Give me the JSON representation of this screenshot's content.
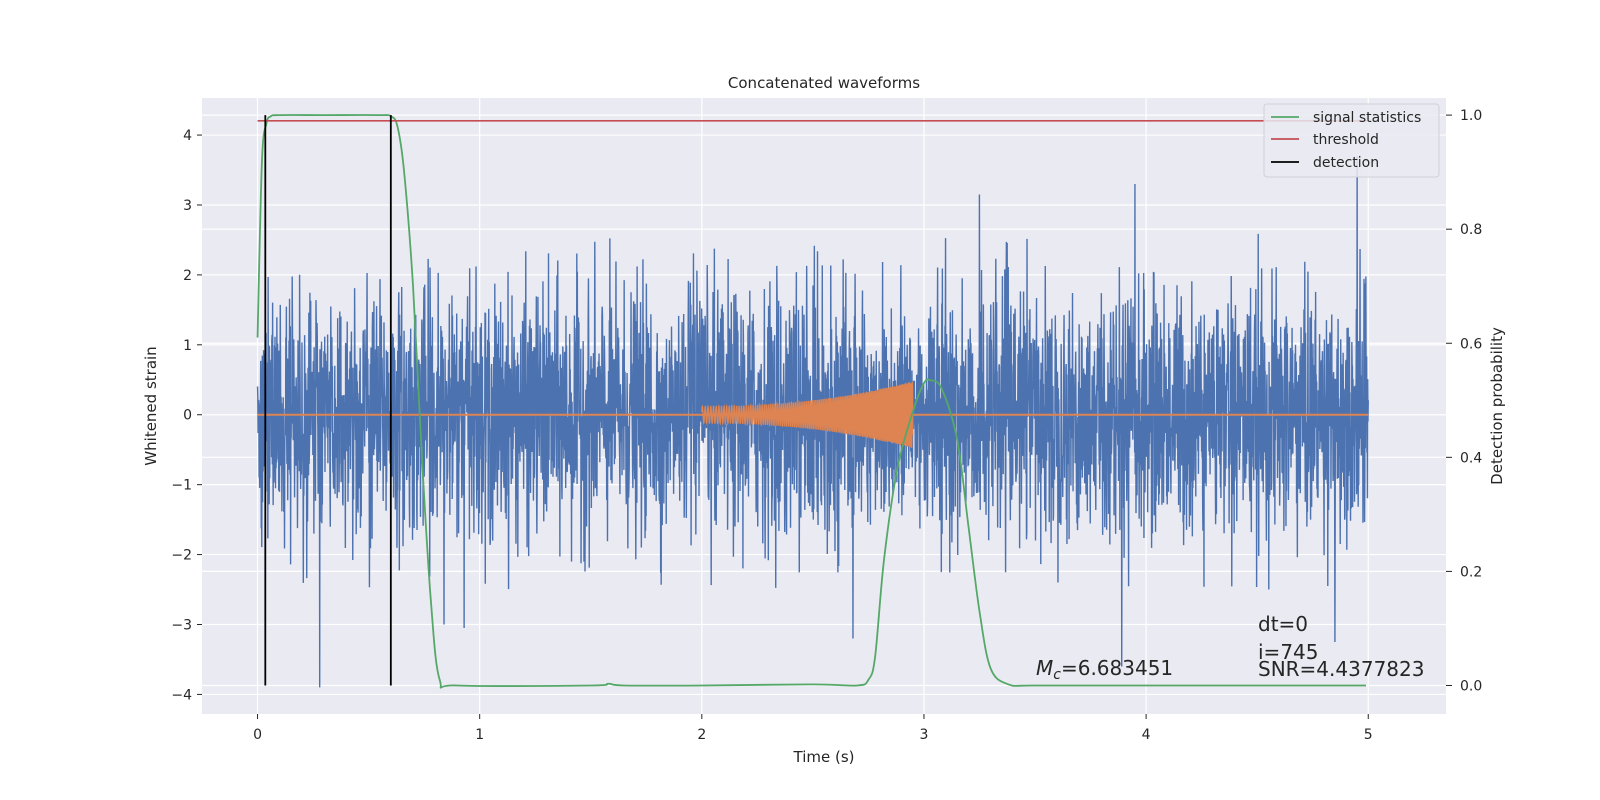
{
  "chart_data": {
    "type": "line",
    "title": "Concatenated waveforms",
    "xlabel": "Time (s)",
    "ylabel": "Whitened strain",
    "y2label": "Detection probability",
    "xlim": [
      -0.25,
      5.35
    ],
    "ylim": [
      -4.28,
      4.53
    ],
    "y2lim": [
      -0.05,
      1.03
    ],
    "x_ticks": [
      0,
      1,
      2,
      3,
      4,
      5
    ],
    "x_tick_labels": [
      "0",
      "1",
      "2",
      "3",
      "4",
      "5"
    ],
    "y_ticks": [
      4,
      3,
      2,
      1,
      0,
      -1,
      -2,
      -3,
      -4
    ],
    "y_tick_labels": [
      "4",
      "3",
      "2",
      "1",
      "0",
      "−1",
      "−2",
      "−3",
      "−4"
    ],
    "y2_ticks": [
      1.0,
      0.8,
      0.6,
      0.4,
      0.2,
      0.0
    ],
    "y2_tick_labels": [
      "1.0",
      "0.8",
      "0.6",
      "0.4",
      "0.2",
      "0.0"
    ],
    "grid": true,
    "legend_position": "top-right",
    "colors": {
      "background": "#eaeaf2",
      "grid": "#ffffff",
      "noise": "#4c72b0",
      "chirp": "#dd8452",
      "signal_statistics": "#55a868",
      "threshold": "#c44e52",
      "detection": "#000000"
    },
    "series": [
      {
        "name": "signal statistics",
        "axis": "right",
        "x": [
          0,
          0.02,
          0.04,
          0.06,
          0.1,
          0.3,
          0.55,
          0.6,
          0.63,
          0.66,
          0.7,
          0.74,
          0.78,
          0.82,
          0.9,
          1.5,
          1.58,
          1.65,
          2.0,
          2.5,
          2.7,
          2.75,
          2.78,
          2.82,
          2.88,
          2.95,
          3.0,
          3.03,
          3.08,
          3.15,
          3.2,
          3.25,
          3.3,
          3.38,
          3.5,
          4.0,
          4.5,
          4.99
        ],
        "y": [
          0.61,
          0.92,
          0.985,
          0.998,
          1.0,
          1.0,
          1.0,
          0.998,
          0.98,
          0.9,
          0.7,
          0.4,
          0.15,
          0.01,
          0.0,
          0.0,
          0.003,
          0.0,
          0.0,
          0.002,
          0.0,
          0.01,
          0.05,
          0.22,
          0.38,
          0.48,
          0.53,
          0.535,
          0.52,
          0.43,
          0.28,
          0.13,
          0.03,
          0.002,
          0.0,
          0.0,
          0.0,
          0.0
        ]
      },
      {
        "name": "threshold",
        "axis": "right",
        "x": [
          0,
          5
        ],
        "y": [
          0.99,
          0.99
        ]
      },
      {
        "name": "detection",
        "axis": "right",
        "x_positions": [
          0.035,
          0.6
        ],
        "y": [
          0.0,
          1.0
        ]
      },
      {
        "name": "",
        "axis": "left",
        "kind": "noise",
        "x_range": [
          0,
          5
        ],
        "typical_range": [
          -2.5,
          2.6
        ],
        "extremes": [
          {
            "x": 0.28,
            "y": -3.9
          },
          {
            "x": 3.89,
            "y": -3.6
          },
          {
            "x": 3.95,
            "y": 3.3
          },
          {
            "x": 4.95,
            "y": 3.7
          },
          {
            "x": 4.85,
            "y": -3.25
          },
          {
            "x": 3.25,
            "y": 3.15
          },
          {
            "x": 2.68,
            "y": -3.2
          },
          {
            "x": 0.84,
            "y": -3.0
          },
          {
            "x": 0.93,
            "y": -3.05
          }
        ]
      },
      {
        "name": "",
        "axis": "left",
        "kind": "chirp",
        "x_range": [
          2.0,
          2.95
        ],
        "amplitude_start": 0.12,
        "amplitude_end": 0.48
      }
    ],
    "annotations": {
      "mc_symbol": "M",
      "mc_subscript": "c",
      "mc_value": "=6.683451",
      "dt": "dt=0",
      "i": "i=745",
      "snr": "SNR=4.4377823"
    }
  }
}
